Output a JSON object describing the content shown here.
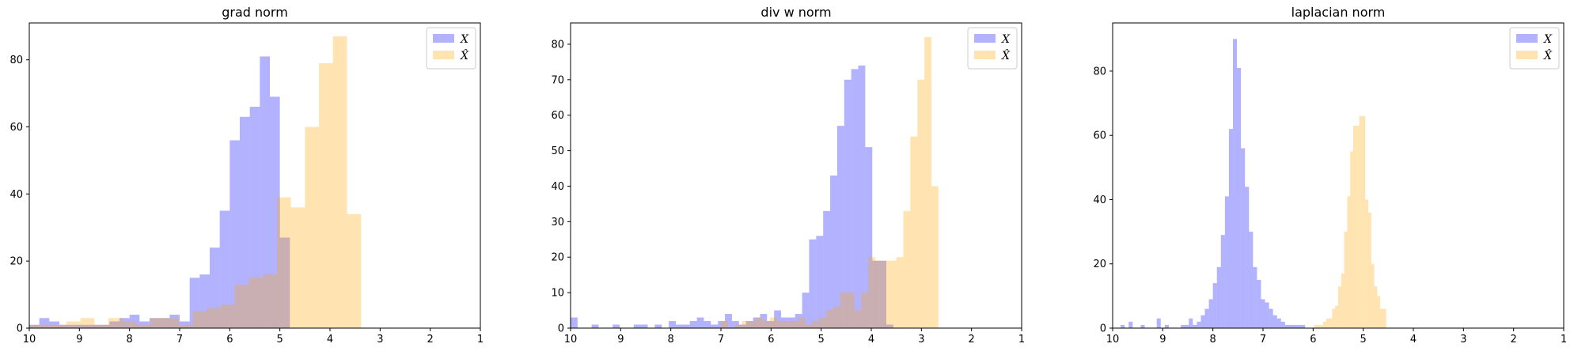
{
  "chart_data": [
    {
      "type": "histogram",
      "title": "grad norm",
      "xlim": [
        10,
        1
      ],
      "ylim": [
        0,
        91
      ],
      "xticks": [
        "10",
        "9",
        "8",
        "7",
        "6",
        "5",
        "4",
        "3",
        "2",
        "1"
      ],
      "yticks": [
        "0",
        "20",
        "40",
        "60",
        "80"
      ],
      "legend_position": "top-right",
      "series": [
        {
          "name": "X",
          "color": "#0000ff",
          "bin_width": 0.2,
          "bins_start": [
            10.0,
            9.8,
            9.6,
            9.4,
            9.2,
            9.0,
            8.8,
            8.6,
            8.4,
            8.2,
            8.0,
            7.8,
            7.6,
            7.4,
            7.2,
            7.0,
            6.8,
            6.6,
            6.4,
            6.2,
            6.0,
            5.8,
            5.6,
            5.4,
            5.2,
            5.0
          ],
          "counts": [
            1,
            3,
            2,
            1,
            1,
            1,
            1,
            1,
            2,
            3,
            4,
            2,
            3,
            3,
            4,
            2,
            15,
            16,
            24,
            35,
            56,
            63,
            66,
            81,
            69,
            27
          ]
        },
        {
          "name": "X̂",
          "color": "#ffa500",
          "bin_width": 0.28,
          "bins_start": [
            10.1,
            9.82,
            9.54,
            9.26,
            8.98,
            8.7,
            8.42,
            8.14,
            7.86,
            7.58,
            7.3,
            7.02,
            6.74,
            6.46,
            6.18,
            5.9,
            5.62,
            5.34,
            5.06,
            4.78,
            4.5,
            4.22,
            3.94,
            3.66
          ],
          "counts": [
            1,
            1,
            1,
            2,
            3,
            1,
            3,
            2,
            1,
            3,
            3,
            1,
            5,
            6,
            7,
            13,
            15,
            16,
            39,
            36,
            60,
            79,
            87,
            34
          ]
        }
      ]
    },
    {
      "type": "histogram",
      "title": "div w norm",
      "xlim": [
        10,
        1
      ],
      "ylim": [
        0,
        86
      ],
      "xticks": [
        "10",
        "9",
        "8",
        "7",
        "6",
        "5",
        "4",
        "3",
        "2",
        "1"
      ],
      "yticks": [
        "0",
        "10",
        "20",
        "30",
        "40",
        "50",
        "60",
        "70",
        "80"
      ],
      "legend_position": "top-right",
      "series": [
        {
          "name": "X",
          "color": "#0000ff",
          "bin_width": 0.14,
          "bins_start": [
            10.0,
            9.58,
            9.16,
            8.74,
            8.6,
            8.32,
            8.04,
            7.9,
            7.76,
            7.62,
            7.48,
            7.34,
            7.2,
            7.06,
            6.92,
            6.78,
            6.64,
            6.5,
            6.36,
            6.22,
            6.08,
            5.94,
            5.8,
            5.66,
            5.52,
            5.38,
            5.24,
            5.1,
            4.96,
            4.82,
            4.68,
            4.54,
            4.4,
            4.26,
            4.12,
            3.98,
            3.84,
            3.7
          ],
          "counts": [
            3,
            1,
            1,
            1,
            1,
            1,
            2,
            1,
            1,
            2,
            3,
            2,
            1,
            2,
            4,
            2,
            1,
            2,
            3,
            4,
            2,
            5,
            3,
            3,
            4,
            10,
            25,
            26,
            33,
            43,
            57,
            70,
            73,
            74,
            51,
            19,
            19,
            1
          ]
        },
        {
          "name": "X̂",
          "color": "#ffa500",
          "bin_width": 0.14,
          "bins_start": [
            7.0,
            6.72,
            6.58,
            6.44,
            6.3,
            6.16,
            6.02,
            5.88,
            5.74,
            5.6,
            5.46,
            5.32,
            5.18,
            5.04,
            4.9,
            4.76,
            4.62,
            4.48,
            4.34,
            4.2,
            4.06,
            3.92,
            3.78,
            3.64,
            3.5,
            3.36,
            3.22,
            3.08,
            2.94,
            2.8
          ],
          "counts": [
            2,
            1,
            2,
            2,
            3,
            2,
            3,
            2,
            2,
            2,
            3,
            1,
            2,
            3,
            5,
            6,
            10,
            10,
            5,
            10,
            20,
            19,
            19,
            19,
            20,
            33,
            54,
            70,
            82,
            40
          ]
        }
      ]
    },
    {
      "type": "histogram",
      "title": "laplacian norm",
      "xlim": [
        10,
        1
      ],
      "ylim": [
        0,
        95
      ],
      "xticks": [
        "10",
        "9",
        "8",
        "7",
        "6",
        "5",
        "4",
        "3",
        "2",
        "1"
      ],
      "yticks": [
        "0",
        "20",
        "40",
        "60",
        "80"
      ],
      "legend_position": "top-right",
      "series": [
        {
          "name": "X",
          "color": "#0000ff",
          "bin_width": 0.08,
          "bins_start": [
            9.84,
            9.68,
            9.44,
            9.12,
            8.96,
            8.64,
            8.56,
            8.48,
            8.4,
            8.32,
            8.24,
            8.16,
            8.08,
            8.0,
            7.92,
            7.84,
            7.76,
            7.68,
            7.6,
            7.52,
            7.44,
            7.36,
            7.28,
            7.2,
            7.12,
            7.04,
            6.96,
            6.88,
            6.8,
            6.72,
            6.64,
            6.56,
            6.48,
            6.4,
            6.32,
            6.24
          ],
          "counts": [
            1,
            2,
            1,
            3,
            1,
            1,
            1,
            3,
            1,
            2,
            4,
            6,
            9,
            14,
            19,
            29,
            41,
            62,
            90,
            81,
            56,
            44,
            30,
            19,
            15,
            9,
            8,
            6,
            4,
            3,
            2,
            1,
            1,
            1,
            1,
            1
          ]
        },
        {
          "name": "X̂",
          "color": "#ffa500",
          "bin_width": 0.06,
          "bins_start": [
            5.98,
            5.92,
            5.86,
            5.8,
            5.74,
            5.68,
            5.62,
            5.56,
            5.5,
            5.44,
            5.38,
            5.32,
            5.26,
            5.2,
            5.14,
            5.08,
            5.02,
            4.96,
            4.9,
            4.84,
            4.78,
            4.72,
            4.66,
            4.6
          ],
          "counts": [
            1,
            1,
            1,
            2,
            3,
            3,
            6,
            7,
            13,
            17,
            30,
            41,
            55,
            63,
            63,
            66,
            66,
            40,
            36,
            20,
            13,
            10,
            6,
            6
          ]
        }
      ]
    }
  ]
}
